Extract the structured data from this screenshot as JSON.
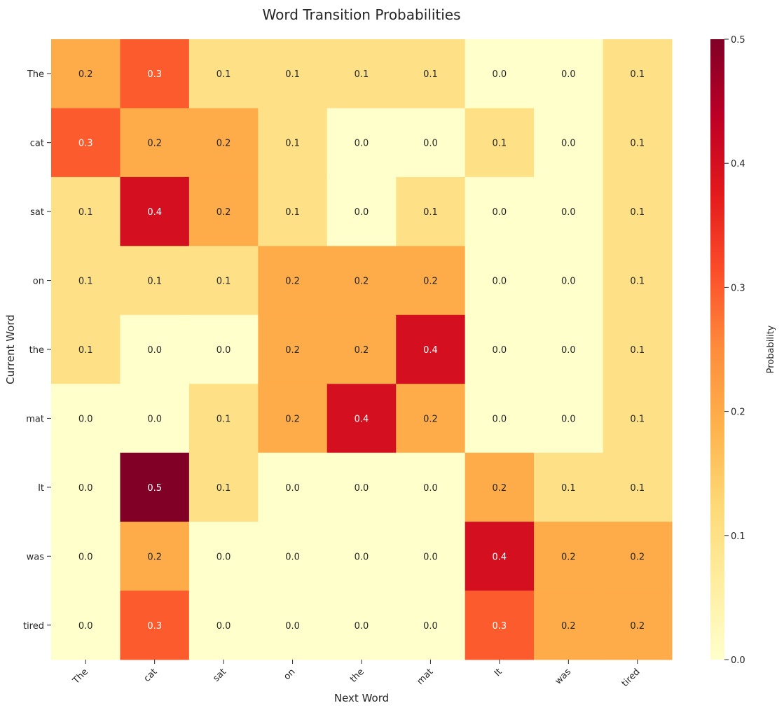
{
  "chart_data": {
    "type": "heatmap",
    "title": "Word Transition Probabilities",
    "xlabel": "Next Word",
    "ylabel": "Current Word",
    "x_categories": [
      "The",
      "cat",
      "sat",
      "on",
      "the",
      "mat",
      "It",
      "was",
      "tired"
    ],
    "y_categories": [
      "The",
      "cat",
      "sat",
      "on",
      "the",
      "mat",
      "It",
      "was",
      "tired"
    ],
    "values": [
      [
        0.2,
        0.3,
        0.1,
        0.1,
        0.1,
        0.1,
        0.0,
        0.0,
        0.1
      ],
      [
        0.3,
        0.2,
        0.2,
        0.1,
        0.0,
        0.0,
        0.1,
        0.0,
        0.1
      ],
      [
        0.1,
        0.4,
        0.2,
        0.1,
        0.0,
        0.1,
        0.0,
        0.0,
        0.1
      ],
      [
        0.1,
        0.1,
        0.1,
        0.2,
        0.2,
        0.2,
        0.0,
        0.0,
        0.1
      ],
      [
        0.1,
        0.0,
        0.0,
        0.2,
        0.2,
        0.4,
        0.0,
        0.0,
        0.1
      ],
      [
        0.0,
        0.0,
        0.1,
        0.2,
        0.4,
        0.2,
        0.0,
        0.0,
        0.1
      ],
      [
        0.0,
        0.5,
        0.1,
        0.0,
        0.0,
        0.0,
        0.2,
        0.1,
        0.1
      ],
      [
        0.0,
        0.2,
        0.0,
        0.0,
        0.0,
        0.0,
        0.4,
        0.2,
        0.2
      ],
      [
        0.0,
        0.3,
        0.0,
        0.0,
        0.0,
        0.0,
        0.3,
        0.2,
        0.2
      ]
    ],
    "colorscale": "YlOrRd",
    "colorbar": {
      "label": "Probability",
      "range": [
        0.0,
        0.5
      ],
      "ticks": [
        "0.0",
        "0.1",
        "0.2",
        "0.3",
        "0.4",
        "0.5"
      ]
    }
  }
}
